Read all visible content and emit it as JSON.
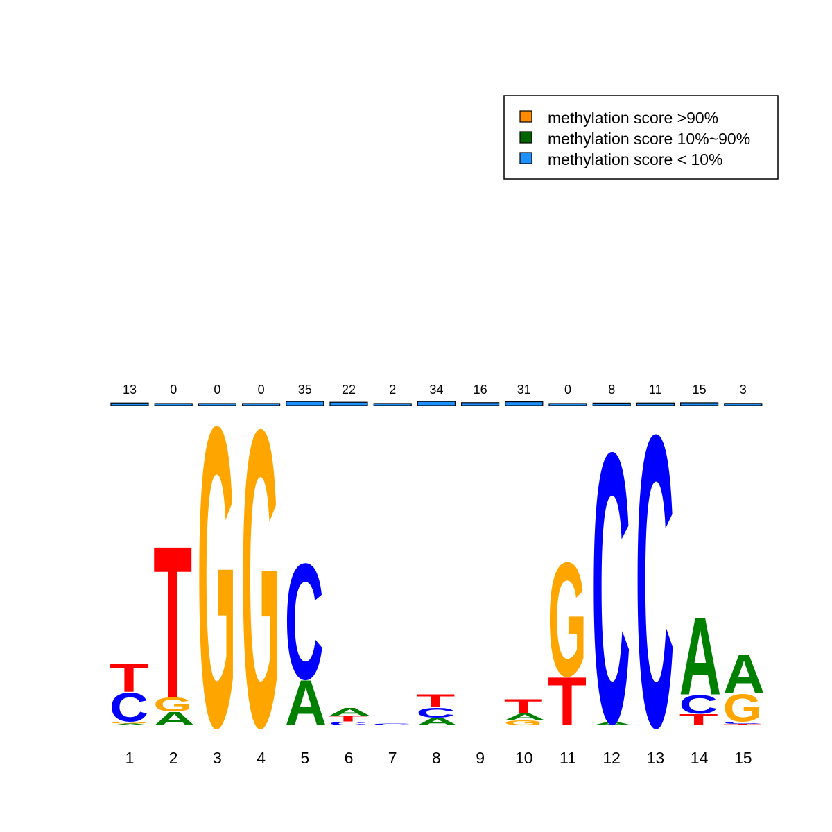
{
  "legend": {
    "items": [
      {
        "label": "methylation score >90%",
        "color": "#FF8C00"
      },
      {
        "label": "methylation score 10%~90%",
        "color": "#006400"
      },
      {
        "label": "methylation score < 10%",
        "color": "#1E90FF"
      }
    ]
  },
  "colors": {
    "A": "#008000",
    "C": "#0000FF",
    "G": "#FFA500",
    "T": "#FF0000"
  },
  "chart_data": {
    "type": "sequence-logo",
    "ylim": [
      0,
      1
    ],
    "positions": [
      1,
      2,
      3,
      4,
      5,
      6,
      7,
      8,
      9,
      10,
      11,
      12,
      13,
      14,
      15
    ],
    "position_labels": [
      "1",
      "2",
      "3",
      "4",
      "5",
      "6",
      "7",
      "8",
      "9",
      "10",
      "11",
      "12",
      "13",
      "14",
      "15"
    ],
    "methylation_counts": [
      13,
      0,
      0,
      0,
      35,
      22,
      2,
      34,
      16,
      31,
      0,
      8,
      11,
      15,
      3
    ],
    "methylation_bar_fraction": [
      0.25,
      0,
      0,
      0,
      0.95,
      0.6,
      0.02,
      0.95,
      0.4,
      0.8,
      0,
      0.2,
      0.25,
      0.35,
      0.05
    ],
    "stacks": [
      [
        {
          "base": "A",
          "h": 0.006
        },
        {
          "base": "G",
          "h": 0.006
        },
        {
          "base": "C",
          "h": 0.096
        },
        {
          "base": "T",
          "h": 0.095
        }
      ],
      [
        {
          "base": "A",
          "h": 0.045
        },
        {
          "base": "G",
          "h": 0.047
        },
        {
          "base": "T",
          "h": 0.506
        }
      ],
      [
        {
          "base": "G",
          "h": 1.0
        }
      ],
      [
        {
          "base": "G",
          "h": 0.99
        }
      ],
      [
        {
          "base": "A",
          "h": 0.151
        },
        {
          "base": "C",
          "h": 0.386
        }
      ],
      [
        {
          "base": "C",
          "h": 0.012
        },
        {
          "base": "T",
          "h": 0.02
        },
        {
          "base": "A",
          "h": 0.025
        }
      ],
      [
        {
          "base": "C",
          "h": 0.006
        }
      ],
      [
        {
          "base": "A",
          "h": 0.025
        },
        {
          "base": "C",
          "h": 0.033
        },
        {
          "base": "T",
          "h": 0.044
        }
      ],
      [],
      [
        {
          "base": "G",
          "h": 0.017
        },
        {
          "base": "A",
          "h": 0.022
        },
        {
          "base": "T",
          "h": 0.047
        }
      ],
      [
        {
          "base": "T",
          "h": 0.161
        },
        {
          "base": "G",
          "h": 0.379
        }
      ],
      [
        {
          "base": "A",
          "h": 0.012
        },
        {
          "base": "C",
          "h": 0.901
        }
      ],
      [
        {
          "base": "C",
          "h": 0.972
        }
      ],
      [
        {
          "base": "T",
          "h": 0.038
        },
        {
          "base": "C",
          "h": 0.062
        },
        {
          "base": "A",
          "h": 0.259
        }
      ],
      [
        {
          "base": "T",
          "h": 0.005
        },
        {
          "base": "C",
          "h": 0.007
        },
        {
          "base": "G",
          "h": 0.092
        },
        {
          "base": "A",
          "h": 0.131
        }
      ]
    ]
  }
}
